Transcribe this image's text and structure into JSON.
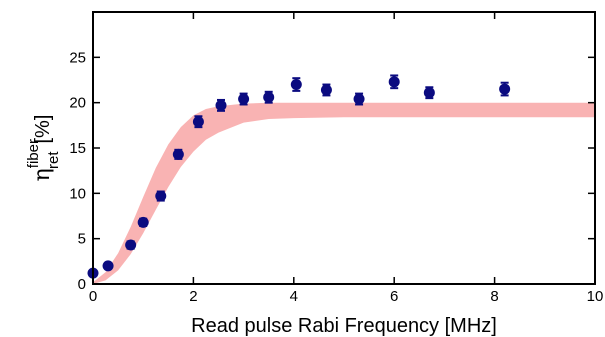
{
  "chart_data": {
    "type": "scatter",
    "xlabel": "Read pulse Rabi Frequency [MHz]",
    "ylabel": {
      "symbol": "η",
      "superscript": "fiber",
      "subscript": "ret",
      "unit": "[%]"
    },
    "xlim": [
      0,
      10
    ],
    "ylim": [
      0,
      30
    ],
    "xticks": [
      0,
      2,
      4,
      6,
      8,
      10
    ],
    "yticks": [
      0,
      5,
      10,
      15,
      20,
      25
    ],
    "grid": false,
    "legend": "none",
    "series": [
      {
        "kind": "points-with-errorbars",
        "color": "#0b0b80",
        "points": [
          {
            "x": 0.0,
            "y": 1.2,
            "err": 0.3
          },
          {
            "x": 0.3,
            "y": 2.0,
            "err": 0.3
          },
          {
            "x": 0.75,
            "y": 4.3,
            "err": 0.4
          },
          {
            "x": 1.0,
            "y": 6.8,
            "err": 0.4
          },
          {
            "x": 1.35,
            "y": 9.7,
            "err": 0.5
          },
          {
            "x": 1.7,
            "y": 14.3,
            "err": 0.5
          },
          {
            "x": 2.1,
            "y": 17.9,
            "err": 0.6
          },
          {
            "x": 2.55,
            "y": 19.7,
            "err": 0.6
          },
          {
            "x": 3.0,
            "y": 20.4,
            "err": 0.6
          },
          {
            "x": 3.5,
            "y": 20.6,
            "err": 0.6
          },
          {
            "x": 4.05,
            "y": 22.0,
            "err": 0.7
          },
          {
            "x": 4.65,
            "y": 21.4,
            "err": 0.6
          },
          {
            "x": 5.3,
            "y": 20.4,
            "err": 0.6
          },
          {
            "x": 6.0,
            "y": 22.3,
            "err": 0.7
          },
          {
            "x": 6.7,
            "y": 21.1,
            "err": 0.6
          },
          {
            "x": 8.2,
            "y": 21.5,
            "err": 0.7
          }
        ]
      },
      {
        "kind": "band",
        "color": "#f9b3b3",
        "x": [
          0.0,
          0.25,
          0.5,
          0.75,
          1.0,
          1.25,
          1.5,
          1.75,
          2.0,
          2.25,
          2.5,
          3.0,
          3.5,
          4.0,
          5.0,
          6.0,
          7.0,
          8.0,
          9.0,
          10.0
        ],
        "upper": [
          0.2,
          1.3,
          3.4,
          6.3,
          9.6,
          12.8,
          15.4,
          17.3,
          18.6,
          19.3,
          19.6,
          19.9,
          20.0,
          20.0,
          20.0,
          20.0,
          20.0,
          20.0,
          20.0,
          20.0
        ],
        "lower": [
          0.0,
          0.4,
          1.5,
          3.3,
          5.6,
          8.2,
          10.7,
          12.9,
          14.6,
          15.9,
          16.7,
          17.8,
          18.2,
          18.3,
          18.4,
          18.4,
          18.4,
          18.4,
          18.4,
          18.4
        ]
      }
    ]
  }
}
